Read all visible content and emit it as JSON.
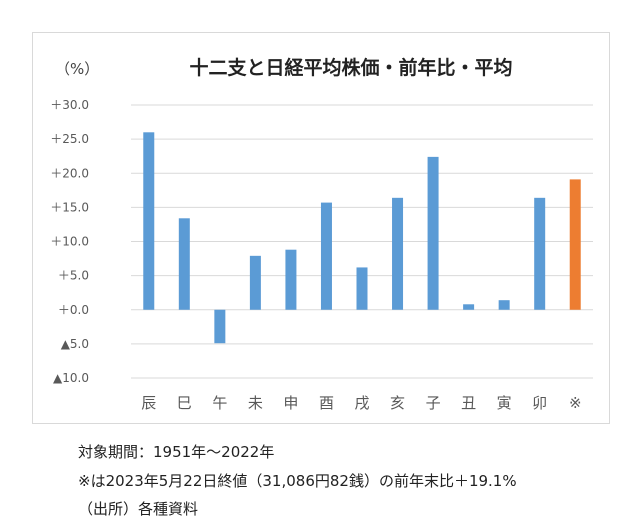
{
  "chart_data": {
    "type": "bar",
    "title": "十二支と日経平均株価・前年比・平均",
    "ylabel": "（%）",
    "xlabel": "",
    "categories": [
      "辰",
      "巳",
      "午",
      "未",
      "申",
      "酉",
      "戌",
      "亥",
      "子",
      "丑",
      "寅",
      "卯",
      "※"
    ],
    "values": [
      26.0,
      13.4,
      -4.9,
      7.9,
      8.8,
      15.7,
      6.2,
      16.4,
      22.4,
      0.8,
      1.4,
      16.4,
      19.1
    ],
    "ylim": [
      -10,
      30
    ],
    "yticks": [
      30,
      25,
      20,
      15,
      10,
      5,
      0,
      -5,
      -10
    ],
    "ytick_labels": [
      "＋30.0",
      "＋25.0",
      "＋20.0",
      "＋15.0",
      "＋10.0",
      "＋5.0",
      "＋0.0",
      "▲5.0",
      "▲10.0"
    ],
    "grid": true,
    "colors": {
      "bar": "#5b9bd5",
      "highlight": "#ed7d31",
      "grid": "#d9d9d9",
      "text": "#595959"
    },
    "highlight_index": 12
  },
  "notes": {
    "period": "対象期間：1951年～2022年",
    "footnote": "※は2023年5月22日終値（31,086円82銭）の前年末比＋19.1%",
    "source": "（出所）各種資料"
  }
}
